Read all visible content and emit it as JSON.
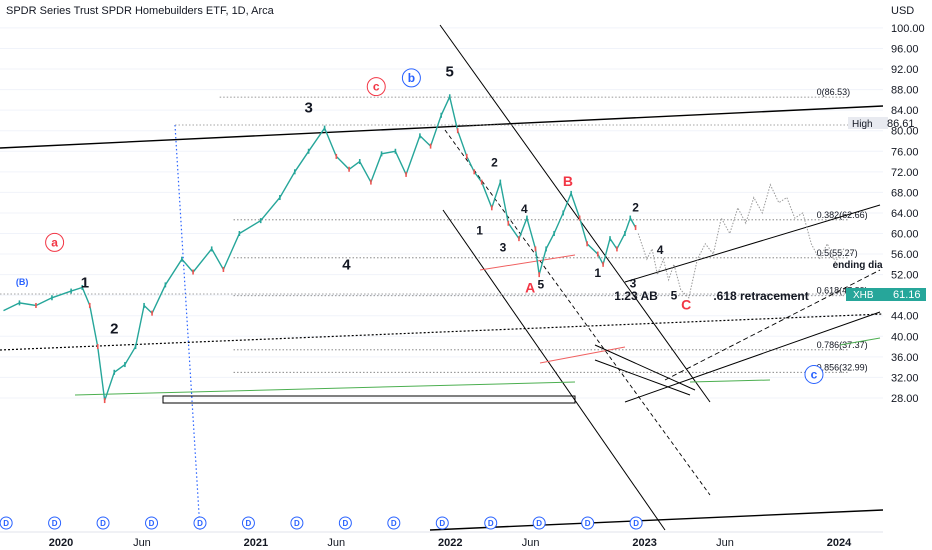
{
  "header": {
    "title": "SPDR Series Trust SPDR Homebuilders ETF, 1D, Arca",
    "currency": "USD"
  },
  "price_tags": {
    "high_label": "High",
    "high_value": "86.61",
    "last_symbol": "XHB",
    "last_value": "61.16"
  },
  "chart_data": {
    "type": "line",
    "title": "SPDR Series Trust SPDR Homebuilders ETF, 1D, Arca",
    "ylabel": "USD",
    "ylim": [
      26,
      104
    ],
    "y_ticks": [
      "100.00",
      "96.00",
      "92.00",
      "88.00",
      "84.00",
      "80.00",
      "76.00",
      "72.00",
      "68.00",
      "64.00",
      "60.00",
      "56.00",
      "52.00",
      "48.00",
      "44.00",
      "40.00",
      "36.00",
      "32.00",
      "28.00"
    ],
    "x_ticks": [
      "2020",
      "Jun",
      "2021",
      "Jun",
      "2022",
      "Jun",
      "2023",
      "Jun",
      "2024"
    ],
    "x_tick_dates": [
      "2020-01-01",
      "2020-06-01",
      "2021-01-01",
      "2021-06-01",
      "2022-01-01",
      "2022-06-01",
      "2023-01-01",
      "2023-06-01",
      "2024-01-01"
    ],
    "series": [
      {
        "values": [
          [
            "2019-09-15",
            45
          ],
          [
            "2019-10-15",
            46.5
          ],
          [
            "2019-11-15",
            46
          ],
          [
            "2019-12-15",
            47.5
          ],
          [
            "2020-01-20",
            48.8
          ],
          [
            "2020-02-10",
            49.5
          ],
          [
            "2020-02-24",
            46
          ],
          [
            "2020-03-10",
            38
          ],
          [
            "2020-03-23",
            27.5
          ],
          [
            "2020-04-10",
            33
          ],
          [
            "2020-04-30",
            34.5
          ],
          [
            "2020-05-20",
            38
          ],
          [
            "2020-06-05",
            46
          ],
          [
            "2020-06-20",
            44.5
          ],
          [
            "2020-07-15",
            50
          ],
          [
            "2020-08-15",
            55
          ],
          [
            "2020-09-05",
            52.5
          ],
          [
            "2020-10-10",
            57
          ],
          [
            "2020-11-01",
            53
          ],
          [
            "2020-12-01",
            60
          ],
          [
            "2021-01-10",
            62.5
          ],
          [
            "2021-02-15",
            67
          ],
          [
            "2021-03-15",
            72
          ],
          [
            "2021-04-10",
            76
          ],
          [
            "2021-05-10",
            80.5
          ],
          [
            "2021-06-01",
            75
          ],
          [
            "2021-06-25",
            72.5
          ],
          [
            "2021-07-15",
            74
          ],
          [
            "2021-08-05",
            70
          ],
          [
            "2021-08-25",
            75.5
          ],
          [
            "2021-09-20",
            76
          ],
          [
            "2021-10-10",
            71.5
          ],
          [
            "2021-11-05",
            79
          ],
          [
            "2021-11-25",
            77
          ],
          [
            "2021-12-15",
            83
          ],
          [
            "2021-12-31",
            86.6
          ],
          [
            "2022-01-15",
            80
          ],
          [
            "2022-02-01",
            75
          ],
          [
            "2022-02-15",
            72
          ],
          [
            "2022-03-01",
            70
          ],
          [
            "2022-03-20",
            65
          ],
          [
            "2022-04-05",
            70
          ],
          [
            "2022-04-20",
            62
          ],
          [
            "2022-05-10",
            59
          ],
          [
            "2022-05-25",
            63
          ],
          [
            "2022-06-10",
            57
          ],
          [
            "2022-06-17",
            52
          ],
          [
            "2022-06-30",
            57
          ],
          [
            "2022-07-15",
            60
          ],
          [
            "2022-08-01",
            64
          ],
          [
            "2022-08-16",
            67.8
          ],
          [
            "2022-09-01",
            63
          ],
          [
            "2022-09-15",
            58
          ],
          [
            "2022-10-05",
            56
          ],
          [
            "2022-10-15",
            54
          ],
          [
            "2022-10-28",
            59
          ],
          [
            "2022-11-10",
            57
          ],
          [
            "2022-11-25",
            60
          ],
          [
            "2022-12-05",
            63
          ],
          [
            "2022-12-15",
            61.16
          ]
        ]
      }
    ],
    "projection": [
      [
        "2022-12-20",
        60
      ],
      [
        "2023-01-05",
        55
      ],
      [
        "2023-01-15",
        57
      ],
      [
        "2023-01-25",
        52
      ],
      [
        "2023-02-05",
        55
      ],
      [
        "2023-02-15",
        51
      ],
      [
        "2023-02-25",
        54
      ],
      [
        "2023-03-10",
        49
      ],
      [
        "2023-03-25",
        47.5
      ],
      [
        "2023-04-10",
        55
      ],
      [
        "2023-04-25",
        58
      ],
      [
        "2023-05-10",
        56
      ],
      [
        "2023-05-25",
        63
      ],
      [
        "2023-06-10",
        60
      ],
      [
        "2023-06-25",
        65
      ],
      [
        "2023-07-10",
        62
      ],
      [
        "2023-07-25",
        67
      ],
      [
        "2023-08-10",
        64
      ],
      [
        "2023-08-25",
        69.5
      ],
      [
        "2023-09-10",
        66
      ],
      [
        "2023-09-25",
        67
      ],
      [
        "2023-10-10",
        63
      ],
      [
        "2023-10-25",
        64
      ],
      [
        "2023-11-10",
        58
      ],
      [
        "2023-11-25",
        55
      ],
      [
        "2023-12-10",
        58
      ],
      [
        "2023-12-25",
        54.5
      ],
      [
        "2024-01-10",
        57
      ],
      [
        "2024-01-25",
        56
      ]
    ],
    "fib_levels": [
      {
        "label": "0(86.53)",
        "value": 86.53
      },
      {
        "label": "0.382(62.66)",
        "value": 62.66
      },
      {
        "label": "0.5(55.27)",
        "value": 55.27
      },
      {
        "label": "0.618(47.89)",
        "value": 47.89
      },
      {
        "label": "0.786(37.37)",
        "value": 37.37
      },
      {
        "label": "0.856(32.99)",
        "value": 32.99
      }
    ],
    "wave_labels": [
      {
        "text": "1",
        "x": "2020-02-15",
        "y": 49.5,
        "style": "major"
      },
      {
        "text": "2",
        "x": "2020-04-10",
        "y": 40.5,
        "style": "major"
      },
      {
        "text": "3",
        "x": "2021-04-10",
        "y": 83.5,
        "style": "major"
      },
      {
        "text": "4",
        "x": "2021-06-20",
        "y": 53,
        "style": "major"
      },
      {
        "text": "5",
        "x": "2021-12-31",
        "y": 90.5,
        "style": "major"
      },
      {
        "text": "(B)",
        "x": "2019-10-20",
        "y": 50,
        "style": "blue-small"
      },
      {
        "text": "a",
        "x": "2019-12-20",
        "y": 57.5,
        "style": "red-circle"
      },
      {
        "text": "c",
        "x": "2021-08-15",
        "y": 87.8,
        "style": "red-circle"
      },
      {
        "text": "b",
        "x": "2021-10-20",
        "y": 89.5,
        "style": "blue-circle"
      },
      {
        "text": "c",
        "x": "2023-11-15",
        "y": 31.8,
        "style": "blue-circle"
      },
      {
        "text": "A",
        "x": "2022-05-31",
        "y": 48.5,
        "style": "red"
      },
      {
        "text": "B",
        "x": "2022-08-10",
        "y": 69.2,
        "style": "red"
      },
      {
        "text": "C",
        "x": "2023-03-20",
        "y": 45.2,
        "style": "red"
      },
      {
        "text": "2",
        "x": "2022-03-25",
        "y": 73,
        "style": "minor"
      },
      {
        "text": "4",
        "x": "2022-05-20",
        "y": 64,
        "style": "minor"
      },
      {
        "text": "1",
        "x": "2022-02-25",
        "y": 59.8,
        "style": "minor"
      },
      {
        "text": "3",
        "x": "2022-04-10",
        "y": 56.5,
        "style": "minor"
      },
      {
        "text": "5",
        "x": "2022-06-20",
        "y": 49.3,
        "style": "minor"
      },
      {
        "text": "2",
        "x": "2022-12-15",
        "y": 64.3,
        "style": "minor"
      },
      {
        "text": "4",
        "x": "2023-01-30",
        "y": 56,
        "style": "minor"
      },
      {
        "text": "1",
        "x": "2022-10-05",
        "y": 51.5,
        "style": "minor"
      },
      {
        "text": "3",
        "x": "2022-12-10",
        "y": 49.5,
        "style": "minor"
      },
      {
        "text": "5",
        "x": "2023-02-25",
        "y": 47.2,
        "style": "minor"
      }
    ],
    "annotations": [
      {
        "text": "1.23 AB",
        "x": "2022-11-05",
        "y": 47.1
      },
      {
        "text": ".618 retracement",
        "x": "2023-05-10",
        "y": 47.1
      },
      {
        "text": "ending dia",
        "x": "2023-12-20",
        "y": 53.3
      }
    ],
    "dividend_markers": [
      "2019-09-20",
      "2019-12-20",
      "2020-03-20",
      "2020-06-19",
      "2020-09-18",
      "2020-12-18",
      "2021-03-19",
      "2021-06-18",
      "2021-09-17",
      "2021-12-17",
      "2022-03-18",
      "2022-06-17",
      "2022-09-16",
      "2022-12-16"
    ],
    "dividend_label": "D"
  }
}
